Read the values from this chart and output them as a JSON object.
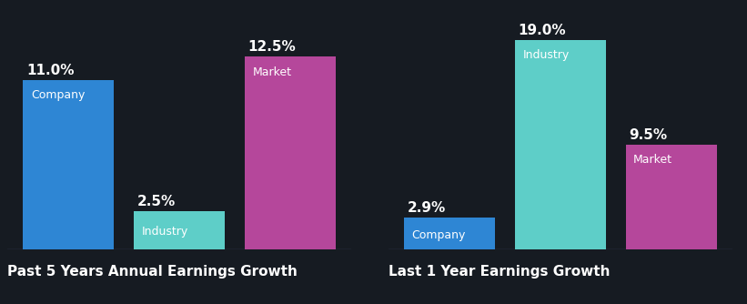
{
  "background_color": "#161b22",
  "chart1": {
    "title": "Past 5 Years Annual Earnings Growth",
    "bars": [
      {
        "label": "Company",
        "value": 11.0,
        "color": "#2e86d4"
      },
      {
        "label": "Industry",
        "value": 2.5,
        "color": "#5ecec8"
      },
      {
        "label": "Market",
        "value": 12.5,
        "color": "#b5479b"
      }
    ]
  },
  "chart2": {
    "title": "Last 1 Year Earnings Growth",
    "bars": [
      {
        "label": "Company",
        "value": 2.9,
        "color": "#2e86d4"
      },
      {
        "label": "Industry",
        "value": 19.0,
        "color": "#5ecec8"
      },
      {
        "label": "Market",
        "value": 9.5,
        "color": "#b5479b"
      }
    ]
  },
  "label_fontsize": 9,
  "value_fontsize": 11,
  "title_fontsize": 11,
  "text_color": "#ffffff",
  "bar_width": 0.82,
  "bar_gap": 0.06,
  "ylim1": [
    0,
    15
  ],
  "ylim2": [
    0,
    21
  ],
  "title_color": "#ffffff"
}
